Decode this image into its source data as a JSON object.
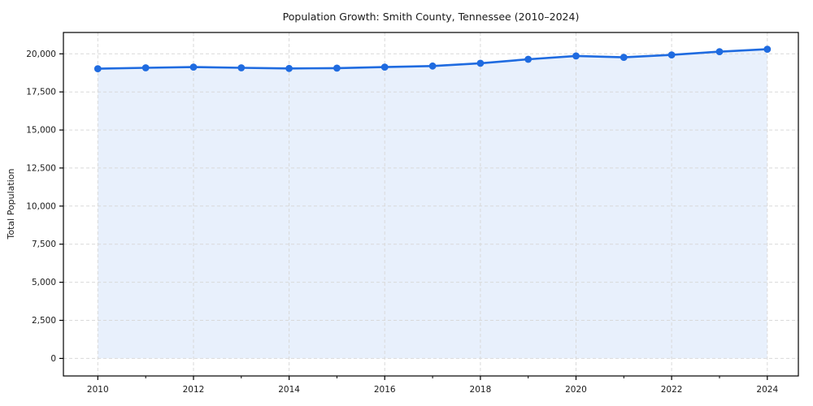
{
  "chart_data": {
    "type": "area",
    "title": "Population Growth: Smith County, Tennessee (2010–2024)",
    "xlabel": "",
    "ylabel": "Total Population",
    "series_name": "Total Population",
    "x": [
      2010,
      2011,
      2012,
      2013,
      2014,
      2015,
      2016,
      2017,
      2018,
      2019,
      2020,
      2021,
      2022,
      2023,
      2024
    ],
    "values": [
      19020,
      19080,
      19130,
      19080,
      19040,
      19060,
      19130,
      19200,
      19380,
      19640,
      19860,
      19770,
      19930,
      20140,
      20300
    ],
    "xlim": [
      2009.28,
      2024.65
    ],
    "ylim": [
      -1150,
      21400
    ],
    "xticks": [
      {
        "value": 2010,
        "label": "2010"
      },
      {
        "value": 2012,
        "label": "2012"
      },
      {
        "value": 2014,
        "label": "2014"
      },
      {
        "value": 2016,
        "label": "2016"
      },
      {
        "value": 2018,
        "label": "2018"
      },
      {
        "value": 2020,
        "label": "2020"
      },
      {
        "value": 2022,
        "label": "2022"
      },
      {
        "value": 2024,
        "label": "2024"
      }
    ],
    "xticks_minor": [
      2011,
      2013,
      2015,
      2017,
      2019,
      2021,
      2023
    ],
    "yticks": [
      {
        "value": 0,
        "label": "0"
      },
      {
        "value": 2500,
        "label": "2,500"
      },
      {
        "value": 5000,
        "label": "5,000"
      },
      {
        "value": 7500,
        "label": "7,500"
      },
      {
        "value": 10000,
        "label": "10,000"
      },
      {
        "value": 12500,
        "label": "12,500"
      },
      {
        "value": 15000,
        "label": "15,000"
      },
      {
        "value": 17500,
        "label": "17,500"
      },
      {
        "value": 20000,
        "label": "20,000"
      }
    ],
    "grid": "major-both-dashed",
    "legend": "none",
    "colors": {
      "line": "#1f6be0",
      "marker": "#1f6be0",
      "fill": "#e8f0fc",
      "grid": "#d9d9d9",
      "axis": "#000000",
      "text": "#1a1a1a"
    }
  }
}
